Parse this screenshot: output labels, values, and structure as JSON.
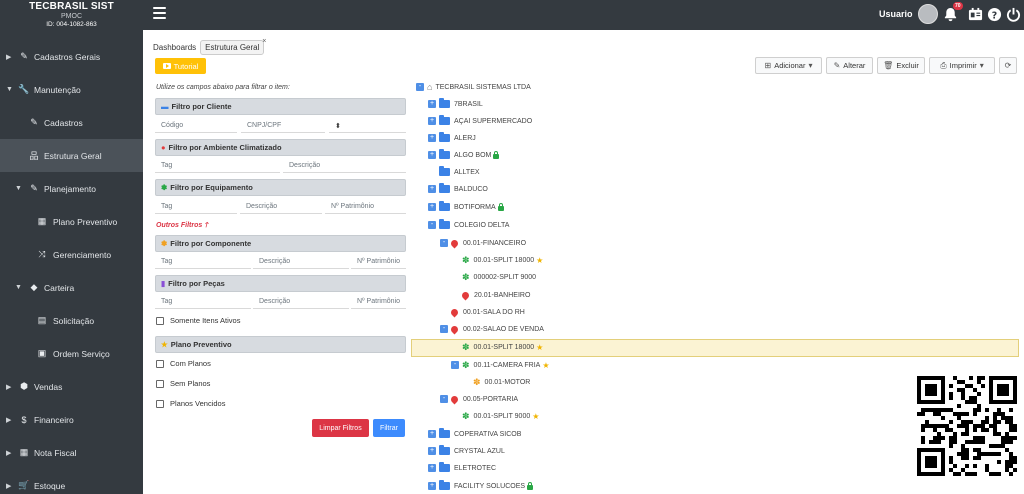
{
  "brand": {
    "title": "TECBRASIL SIST",
    "subtitle": "PMOC",
    "id": "ID: 004-1082-863"
  },
  "sidebar": {
    "items": [
      {
        "label": "Cadastros Gerais",
        "icon": "edit-icon"
      },
      {
        "label": "Manutenção",
        "icon": "wrench-icon"
      },
      {
        "label": "Cadastros",
        "icon": "edit-icon"
      },
      {
        "label": "Estrutura Geral",
        "icon": "sitemap-icon"
      },
      {
        "label": "Planejamento",
        "icon": "edit-icon"
      },
      {
        "label": "Plano Preventivo",
        "icon": "calendar-icon"
      },
      {
        "label": "Gerenciamento",
        "icon": "shuffle-icon"
      },
      {
        "label": "Carteira",
        "icon": "tags-icon"
      },
      {
        "label": "Solicitação",
        "icon": "list-icon"
      },
      {
        "label": "Ordem Serviço",
        "icon": "document-icon"
      },
      {
        "label": "Vendas",
        "icon": "box-icon"
      },
      {
        "label": "Financeiro",
        "icon": "money-icon"
      },
      {
        "label": "Nota Fiscal",
        "icon": "calculator-icon"
      },
      {
        "label": "Estoque",
        "icon": "cart-icon"
      }
    ]
  },
  "topbar": {
    "user": "Usuario",
    "notifications": "70"
  },
  "breadcrumb": {
    "home": "Dashboards",
    "current": "Estrutura Geral"
  },
  "tutorial_label": "Tutorial",
  "filters": {
    "hint": "Utilize os campos abaixo para filtrar o item:",
    "cliente": {
      "title": "Filtro por Cliente",
      "codigo": "Código",
      "cnpj": "CNPJ/CPF"
    },
    "ambiente": {
      "title": "Filtro por Ambiente Climatizado",
      "tag": "Tag",
      "descricao": "Descrição"
    },
    "equipamento": {
      "title": "Filtro por Equipamento",
      "tag": "Tag",
      "descricao": "Descrição",
      "patrimonio": "Nº Patrimônio"
    },
    "outros": "Outros Filtros",
    "componente": {
      "title": "Filtro por Componente",
      "tag": "Tag",
      "descricao": "Descrição",
      "patrimonio": "Nº Patrimônio"
    },
    "pecas": {
      "title": "Filtro por Peças",
      "tag": "Tag",
      "descricao": "Descrição",
      "patrimonio": "Nº Patrimônio"
    },
    "somente_ativos": "Somente Itens Ativos",
    "plano": {
      "title": "Plano Preventivo",
      "com": "Com Planos",
      "sem": "Sem Planos",
      "vencidos": "Planos Vencidos"
    },
    "limpar": "Limpar Filtros",
    "filtrar": "Filtrar"
  },
  "toolbar": {
    "adicionar": "Adicionar",
    "alterar": "Alterar",
    "excluir": "Excluir",
    "imprimir": "Imprimir"
  },
  "tree": {
    "root": "TECBRASIL SISTEMAS LTDA",
    "nodes": [
      "7BRASIL",
      "AÇAI SUPERMERCADO",
      "ALERJ",
      "ALGO BOM",
      "ALLTEX",
      "BALDUCO",
      "BOTIFORMA",
      "COLEGIO DELTA",
      "00.01-FINANCEIRO",
      "00.01-SPLIT 18000",
      "000002-SPLIT 9000",
      "20.01-BANHEIRO",
      "00.01-SALA DO RH",
      "00.02-SALAO DE VENDA",
      "00.01-SPLIT 18000",
      "00.11-CAMERA FRIA",
      "00.01-MOTOR",
      "00.05-PORTARIA",
      "00.01-SPLIT 9000",
      "COPERATIVA SICOB",
      "CRYSTAL AZUL",
      "ELETROTEC",
      "FACILITY SOLUCOES"
    ]
  }
}
